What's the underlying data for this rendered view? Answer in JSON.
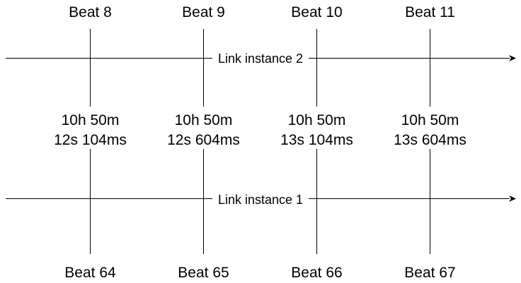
{
  "diagram": {
    "top_beats": [
      "Beat 8",
      "Beat 9",
      "Beat 10",
      "Beat 11"
    ],
    "bottom_beats": [
      "Beat 64",
      "Beat 65",
      "Beat 66",
      "Beat 67"
    ],
    "times": [
      {
        "line1": "10h 50m",
        "line2": "12s 104ms"
      },
      {
        "line1": "10h 50m",
        "line2": "12s 604ms"
      },
      {
        "line1": "10h 50m",
        "line2": "13s 104ms"
      },
      {
        "line1": "10h 50m",
        "line2": "13s 604ms"
      }
    ],
    "timelines": [
      {
        "label": "Link instance 2"
      },
      {
        "label": "Link instance 1"
      }
    ],
    "colors": {
      "ink": "#000000",
      "background": "#ffffff"
    }
  }
}
